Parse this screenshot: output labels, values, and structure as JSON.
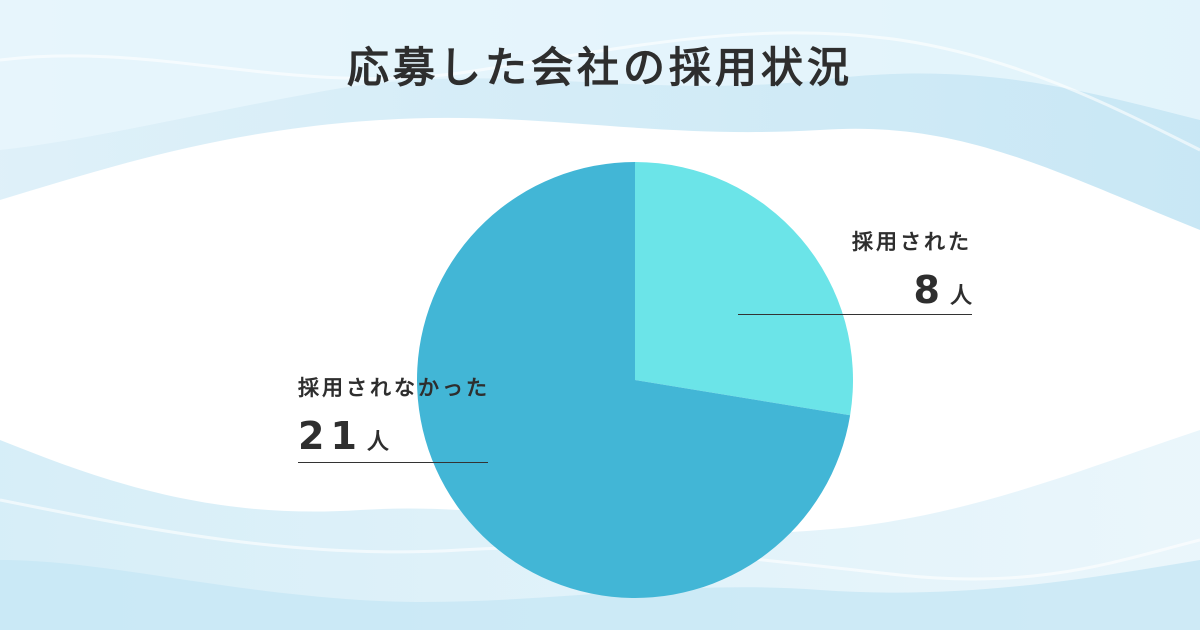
{
  "title": "応募した会社の採用状況",
  "chart_data": {
    "type": "pie",
    "title": "応募した会社の採用状況",
    "slices": [
      {
        "label": "採用された",
        "value": 8,
        "unit": "人",
        "color": "#6be4e8"
      },
      {
        "label": "採用されなかった",
        "value": 21,
        "unit": "人",
        "color": "#42b6d6"
      }
    ],
    "start_angle": "12 o'clock",
    "direction": "clockwise"
  },
  "colors": {
    "background_wave_light": "#e6f4fb",
    "background_wave_mid": "#cbe9f6",
    "text": "#2e2e2e",
    "leader_line": "#333333"
  }
}
